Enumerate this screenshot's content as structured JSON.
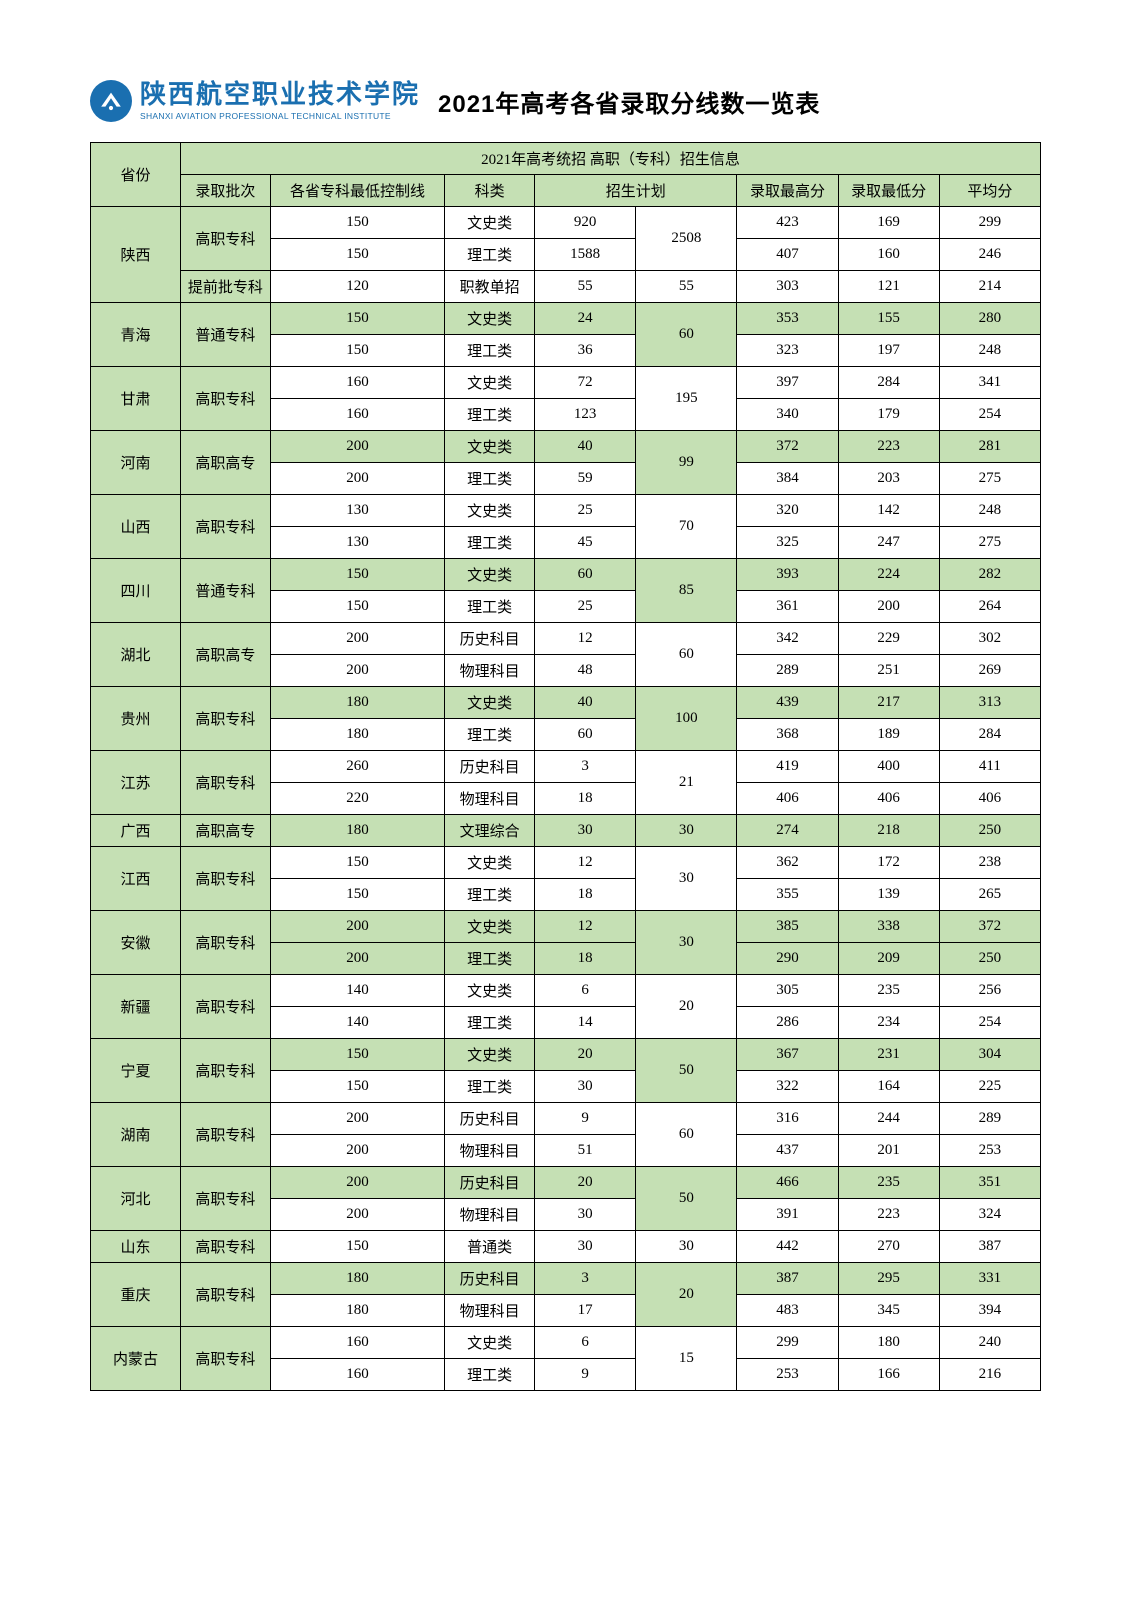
{
  "logo": {
    "name_cn": "陕西航空职业技术学院",
    "name_en": "SHANXI AVIATION PROFESSIONAL TECHNICAL INSTITUTE",
    "brand_color": "#1a6fb0"
  },
  "page_title": "2021年高考各省录取分线数一览表",
  "table_header": {
    "province": "省份",
    "main": "2021年高考统招 高职（专科）招生信息",
    "batch": "录取批次",
    "ctrl": "各省专科最低控制线",
    "subject": "科类",
    "plan": "招生计划",
    "max": "录取最高分",
    "min": "录取最低分",
    "avg": "平均分"
  },
  "header_bg": "#c5e0b4",
  "highlight_bg": "#c5e0b4",
  "border_color": "#000000",
  "provinces": [
    {
      "name": "陕西",
      "rows": [
        {
          "batch": "高职专科",
          "batch_span": 2,
          "ctrl": "150",
          "subject": "文史类",
          "plan1": "920",
          "plan2": "2508",
          "plan2_span": 2,
          "max": "423",
          "min": "169",
          "avg": "299"
        },
        {
          "ctrl": "150",
          "subject": "理工类",
          "plan1": "1588",
          "max": "407",
          "min": "160",
          "avg": "246"
        },
        {
          "batch": "提前批专科",
          "batch_span": 1,
          "ctrl": "120",
          "subject": "职教单招",
          "plan1": "55",
          "plan2": "55",
          "plan2_span": 1,
          "max": "303",
          "min": "121",
          "avg": "214"
        }
      ]
    },
    {
      "name": "青海",
      "rows": [
        {
          "batch": "普通专科",
          "batch_span": 2,
          "ctrl": "150",
          "subject": "文史类",
          "plan1": "24",
          "plan2": "60",
          "plan2_span": 2,
          "max": "353",
          "min": "155",
          "avg": "280",
          "hl": true
        },
        {
          "ctrl": "150",
          "subject": "理工类",
          "plan1": "36",
          "max": "323",
          "min": "197",
          "avg": "248"
        }
      ]
    },
    {
      "name": "甘肃",
      "rows": [
        {
          "batch": "高职专科",
          "batch_span": 2,
          "ctrl": "160",
          "subject": "文史类",
          "plan1": "72",
          "plan2": "195",
          "plan2_span": 2,
          "max": "397",
          "min": "284",
          "avg": "341"
        },
        {
          "ctrl": "160",
          "subject": "理工类",
          "plan1": "123",
          "max": "340",
          "min": "179",
          "avg": "254"
        }
      ]
    },
    {
      "name": "河南",
      "rows": [
        {
          "batch": "高职高专",
          "batch_span": 2,
          "ctrl": "200",
          "subject": "文史类",
          "plan1": "40",
          "plan2": "99",
          "plan2_span": 2,
          "max": "372",
          "min": "223",
          "avg": "281",
          "hl": true
        },
        {
          "ctrl": "200",
          "subject": "理工类",
          "plan1": "59",
          "max": "384",
          "min": "203",
          "avg": "275"
        }
      ]
    },
    {
      "name": "山西",
      "rows": [
        {
          "batch": "高职专科",
          "batch_span": 2,
          "ctrl": "130",
          "subject": "文史类",
          "plan1": "25",
          "plan2": "70",
          "plan2_span": 2,
          "max": "320",
          "min": "142",
          "avg": "248"
        },
        {
          "ctrl": "130",
          "subject": "理工类",
          "plan1": "45",
          "max": "325",
          "min": "247",
          "avg": "275"
        }
      ]
    },
    {
      "name": "四川",
      "rows": [
        {
          "batch": "普通专科",
          "batch_span": 2,
          "ctrl": "150",
          "subject": "文史类",
          "plan1": "60",
          "plan2": "85",
          "plan2_span": 2,
          "max": "393",
          "min": "224",
          "avg": "282",
          "hl": true
        },
        {
          "ctrl": "150",
          "subject": "理工类",
          "plan1": "25",
          "max": "361",
          "min": "200",
          "avg": "264"
        }
      ]
    },
    {
      "name": "湖北",
      "rows": [
        {
          "batch": "高职高专",
          "batch_span": 2,
          "ctrl": "200",
          "subject": "历史科目",
          "plan1": "12",
          "plan2": "60",
          "plan2_span": 2,
          "max": "342",
          "min": "229",
          "avg": "302"
        },
        {
          "ctrl": "200",
          "subject": "物理科目",
          "plan1": "48",
          "max": "289",
          "min": "251",
          "avg": "269"
        }
      ]
    },
    {
      "name": "贵州",
      "rows": [
        {
          "batch": "高职专科",
          "batch_span": 2,
          "ctrl": "180",
          "subject": "文史类",
          "plan1": "40",
          "plan2": "100",
          "plan2_span": 2,
          "max": "439",
          "min": "217",
          "avg": "313",
          "hl": true
        },
        {
          "ctrl": "180",
          "subject": "理工类",
          "plan1": "60",
          "max": "368",
          "min": "189",
          "avg": "284"
        }
      ]
    },
    {
      "name": "江苏",
      "rows": [
        {
          "batch": "高职专科",
          "batch_span": 2,
          "ctrl": "260",
          "subject": "历史科目",
          "plan1": "3",
          "plan2": "21",
          "plan2_span": 2,
          "max": "419",
          "min": "400",
          "avg": "411"
        },
        {
          "ctrl": "220",
          "subject": "物理科目",
          "plan1": "18",
          "max": "406",
          "min": "406",
          "avg": "406"
        }
      ]
    },
    {
      "name": "广西",
      "rows": [
        {
          "batch": "高职高专",
          "batch_span": 1,
          "ctrl": "180",
          "subject": "文理综合",
          "plan1": "30",
          "plan2": "30",
          "plan2_span": 1,
          "max": "274",
          "min": "218",
          "avg": "250",
          "hl": true
        }
      ]
    },
    {
      "name": "江西",
      "rows": [
        {
          "batch": "高职专科",
          "batch_span": 2,
          "ctrl": "150",
          "subject": "文史类",
          "plan1": "12",
          "plan2": "30",
          "plan2_span": 2,
          "max": "362",
          "min": "172",
          "avg": "238"
        },
        {
          "ctrl": "150",
          "subject": "理工类",
          "plan1": "18",
          "max": "355",
          "min": "139",
          "avg": "265"
        }
      ]
    },
    {
      "name": "安徽",
      "rows": [
        {
          "batch": "高职专科",
          "batch_span": 2,
          "ctrl": "200",
          "subject": "文史类",
          "plan1": "12",
          "plan2": "30",
          "plan2_span": 2,
          "max": "385",
          "min": "338",
          "avg": "372",
          "hl": true
        },
        {
          "ctrl": "200",
          "subject": "理工类",
          "plan1": "18",
          "max": "290",
          "min": "209",
          "avg": "250",
          "hl": true
        }
      ]
    },
    {
      "name": "新疆",
      "rows": [
        {
          "batch": "高职专科",
          "batch_span": 2,
          "ctrl": "140",
          "subject": "文史类",
          "plan1": "6",
          "plan2": "20",
          "plan2_span": 2,
          "max": "305",
          "min": "235",
          "avg": "256"
        },
        {
          "ctrl": "140",
          "subject": "理工类",
          "plan1": "14",
          "max": "286",
          "min": "234",
          "avg": "254"
        }
      ]
    },
    {
      "name": "宁夏",
      "rows": [
        {
          "batch": "高职专科",
          "batch_span": 2,
          "ctrl": "150",
          "subject": "文史类",
          "plan1": "20",
          "plan2": "50",
          "plan2_span": 2,
          "max": "367",
          "min": "231",
          "avg": "304",
          "hl": true
        },
        {
          "ctrl": "150",
          "subject": "理工类",
          "plan1": "30",
          "max": "322",
          "min": "164",
          "avg": "225"
        }
      ]
    },
    {
      "name": "湖南",
      "rows": [
        {
          "batch": "高职专科",
          "batch_span": 2,
          "ctrl": "200",
          "subject": "历史科目",
          "plan1": "9",
          "plan2": "60",
          "plan2_span": 2,
          "max": "316",
          "min": "244",
          "avg": "289"
        },
        {
          "ctrl": "200",
          "subject": "物理科目",
          "plan1": "51",
          "max": "437",
          "min": "201",
          "avg": "253"
        }
      ]
    },
    {
      "name": "河北",
      "rows": [
        {
          "batch": "高职专科",
          "batch_span": 2,
          "ctrl": "200",
          "subject": "历史科目",
          "plan1": "20",
          "plan2": "50",
          "plan2_span": 2,
          "max": "466",
          "min": "235",
          "avg": "351",
          "hl": true
        },
        {
          "ctrl": "200",
          "subject": "物理科目",
          "plan1": "30",
          "max": "391",
          "min": "223",
          "avg": "324"
        }
      ]
    },
    {
      "name": "山东",
      "rows": [
        {
          "batch": "高职专科",
          "batch_span": 1,
          "ctrl": "150",
          "subject": "普通类",
          "plan1": "30",
          "plan2": "30",
          "plan2_span": 1,
          "max": "442",
          "min": "270",
          "avg": "387"
        }
      ]
    },
    {
      "name": "重庆",
      "rows": [
        {
          "batch": "高职专科",
          "batch_span": 2,
          "ctrl": "180",
          "subject": "历史科目",
          "plan1": "3",
          "plan2": "20",
          "plan2_span": 2,
          "max": "387",
          "min": "295",
          "avg": "331",
          "hl": true
        },
        {
          "ctrl": "180",
          "subject": "物理科目",
          "plan1": "17",
          "max": "483",
          "min": "345",
          "avg": "394"
        }
      ]
    },
    {
      "name": "内蒙古",
      "rows": [
        {
          "batch": "高职专科",
          "batch_span": 2,
          "ctrl": "160",
          "subject": "文史类",
          "plan1": "6",
          "plan2": "15",
          "plan2_span": 2,
          "max": "299",
          "min": "180",
          "avg": "240"
        },
        {
          "ctrl": "160",
          "subject": "理工类",
          "plan1": "9",
          "max": "253",
          "min": "166",
          "avg": "216"
        }
      ]
    }
  ]
}
